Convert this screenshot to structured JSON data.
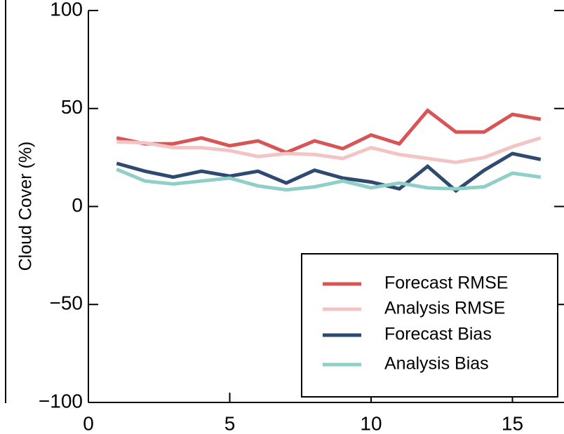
{
  "chart_data": {
    "type": "line",
    "ylabel": "Cloud Cover (%)",
    "xlim": [
      0,
      16.7
    ],
    "xticks": [
      0,
      5,
      10,
      15
    ],
    "ylim": [
      -100,
      100
    ],
    "yticks": [
      {
        "value": -100,
        "label": "−100"
      },
      {
        "value": -50,
        "label": "−50"
      },
      0,
      50,
      100
    ],
    "legend": "lower right",
    "x": [
      1,
      2,
      3,
      4,
      5,
      6,
      7,
      8,
      9,
      10,
      11,
      12,
      13,
      14,
      15,
      16
    ],
    "series": [
      {
        "name": "Forecast RMSE",
        "color": "#d95555",
        "values": [
          35,
          32,
          32,
          35,
          31,
          33.5,
          27.5,
          33.5,
          29.5,
          36.5,
          32,
          49,
          38,
          38,
          47,
          44.5
        ]
      },
      {
        "name": "Analysis RMSE",
        "color": "#f3c4c4",
        "values": [
          33,
          32.5,
          30,
          30,
          28.5,
          25.5,
          27,
          26.5,
          24.5,
          30,
          26.5,
          24.5,
          22.5,
          25,
          30.5,
          35
        ]
      },
      {
        "name": "Forecast Bias",
        "color": "#2e4a70",
        "values": [
          22,
          18,
          15,
          18,
          15.5,
          18,
          12,
          18.5,
          14.5,
          12.5,
          9,
          20.5,
          8,
          18.5,
          27,
          24
        ]
      },
      {
        "name": "Analysis Bias",
        "color": "#8fcfc8",
        "values": [
          19,
          13,
          11.5,
          13,
          14.5,
          10.5,
          8.5,
          10,
          13,
          9.5,
          12,
          9.5,
          9,
          10,
          17,
          15
        ]
      }
    ]
  }
}
